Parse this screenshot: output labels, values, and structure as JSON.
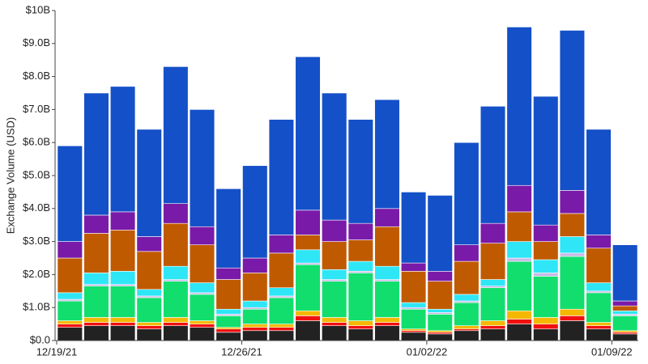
{
  "chart_data": {
    "type": "stacked-bar",
    "ylabel": "Exchange Volume (USD)",
    "categories": [
      "12/19/21",
      null,
      null,
      null,
      null,
      null,
      null,
      "12/26/21",
      null,
      null,
      null,
      null,
      null,
      null,
      "01/02/22",
      null,
      null,
      null,
      null,
      null,
      null,
      "01/09/22"
    ],
    "ylim": [
      0,
      10
    ],
    "yticks": [
      {
        "value": 0,
        "label": "$0.0"
      },
      {
        "value": 1,
        "label": "$1.0B"
      },
      {
        "value": 2,
        "label": "$2.0B"
      },
      {
        "value": 3,
        "label": "$3.0B"
      },
      {
        "value": 4,
        "label": "$4.0B"
      },
      {
        "value": 5,
        "label": "$5.0B"
      },
      {
        "value": 6,
        "label": "$6.0B"
      },
      {
        "value": 7,
        "label": "$7.0B"
      },
      {
        "value": 8,
        "label": "$8.0B"
      },
      {
        "value": 9,
        "label": "$9.0B"
      },
      {
        "value": 10,
        "label": "$10B"
      }
    ],
    "series": [
      {
        "color": "#222222",
        "values": [
          0.4,
          0.45,
          0.45,
          0.35,
          0.45,
          0.4,
          0.25,
          0.3,
          0.3,
          0.6,
          0.45,
          0.35,
          0.45,
          0.25,
          0.2,
          0.3,
          0.35,
          0.5,
          0.35,
          0.6,
          0.35,
          0.2
        ]
      },
      {
        "color": "#f01010",
        "values": [
          0.1,
          0.1,
          0.1,
          0.1,
          0.1,
          0.1,
          0.1,
          0.1,
          0.1,
          0.15,
          0.1,
          0.1,
          0.1,
          0.05,
          0.05,
          0.05,
          0.1,
          0.15,
          0.15,
          0.15,
          0.1,
          0.05
        ]
      },
      {
        "color": "#f5b800",
        "values": [
          0.1,
          0.15,
          0.15,
          0.1,
          0.15,
          0.1,
          0.05,
          0.1,
          0.1,
          0.15,
          0.15,
          0.15,
          0.15,
          0.05,
          0.05,
          0.1,
          0.15,
          0.25,
          0.2,
          0.2,
          0.1,
          0.05
        ]
      },
      {
        "color": "#12de6e",
        "values": [
          0.6,
          0.95,
          0.95,
          0.75,
          1.1,
          0.8,
          0.35,
          0.45,
          0.8,
          1.4,
          1.1,
          1.45,
          1.1,
          0.6,
          0.5,
          0.7,
          1.0,
          1.5,
          1.25,
          1.6,
          0.9,
          0.45
        ]
      },
      {
        "color": "#c8b8e8",
        "values": [
          0.05,
          0.05,
          0.05,
          0.05,
          0.05,
          0.05,
          0.05,
          0.05,
          0.05,
          0.05,
          0.05,
          0.05,
          0.05,
          0.05,
          0.05,
          0.05,
          0.05,
          0.1,
          0.1,
          0.1,
          0.05,
          0.05
        ]
      },
      {
        "color": "#2ee6f6",
        "values": [
          0.2,
          0.35,
          0.4,
          0.2,
          0.4,
          0.3,
          0.15,
          0.2,
          0.25,
          0.4,
          0.3,
          0.3,
          0.4,
          0.15,
          0.1,
          0.2,
          0.2,
          0.5,
          0.4,
          0.5,
          0.25,
          0.1
        ]
      },
      {
        "color": "#c05a00",
        "values": [
          1.05,
          1.2,
          1.25,
          1.15,
          1.3,
          1.15,
          0.9,
          0.85,
          1.05,
          0.45,
          0.85,
          0.65,
          1.2,
          0.95,
          0.85,
          1.0,
          1.1,
          0.9,
          0.55,
          0.7,
          1.05,
          0.15
        ]
      },
      {
        "color": "#7a1aa8",
        "values": [
          0.5,
          0.55,
          0.55,
          0.45,
          0.6,
          0.55,
          0.35,
          0.45,
          0.55,
          0.75,
          0.65,
          0.5,
          0.55,
          0.25,
          0.3,
          0.5,
          0.6,
          0.8,
          0.5,
          0.7,
          0.4,
          0.15
        ]
      },
      {
        "color": "#1450c8",
        "values": [
          2.9,
          3.7,
          3.8,
          3.25,
          4.15,
          3.55,
          2.4,
          2.8,
          3.5,
          4.65,
          3.85,
          3.15,
          3.3,
          2.15,
          2.3,
          3.1,
          3.55,
          4.8,
          3.9,
          4.85,
          3.2,
          1.7
        ]
      }
    ]
  }
}
